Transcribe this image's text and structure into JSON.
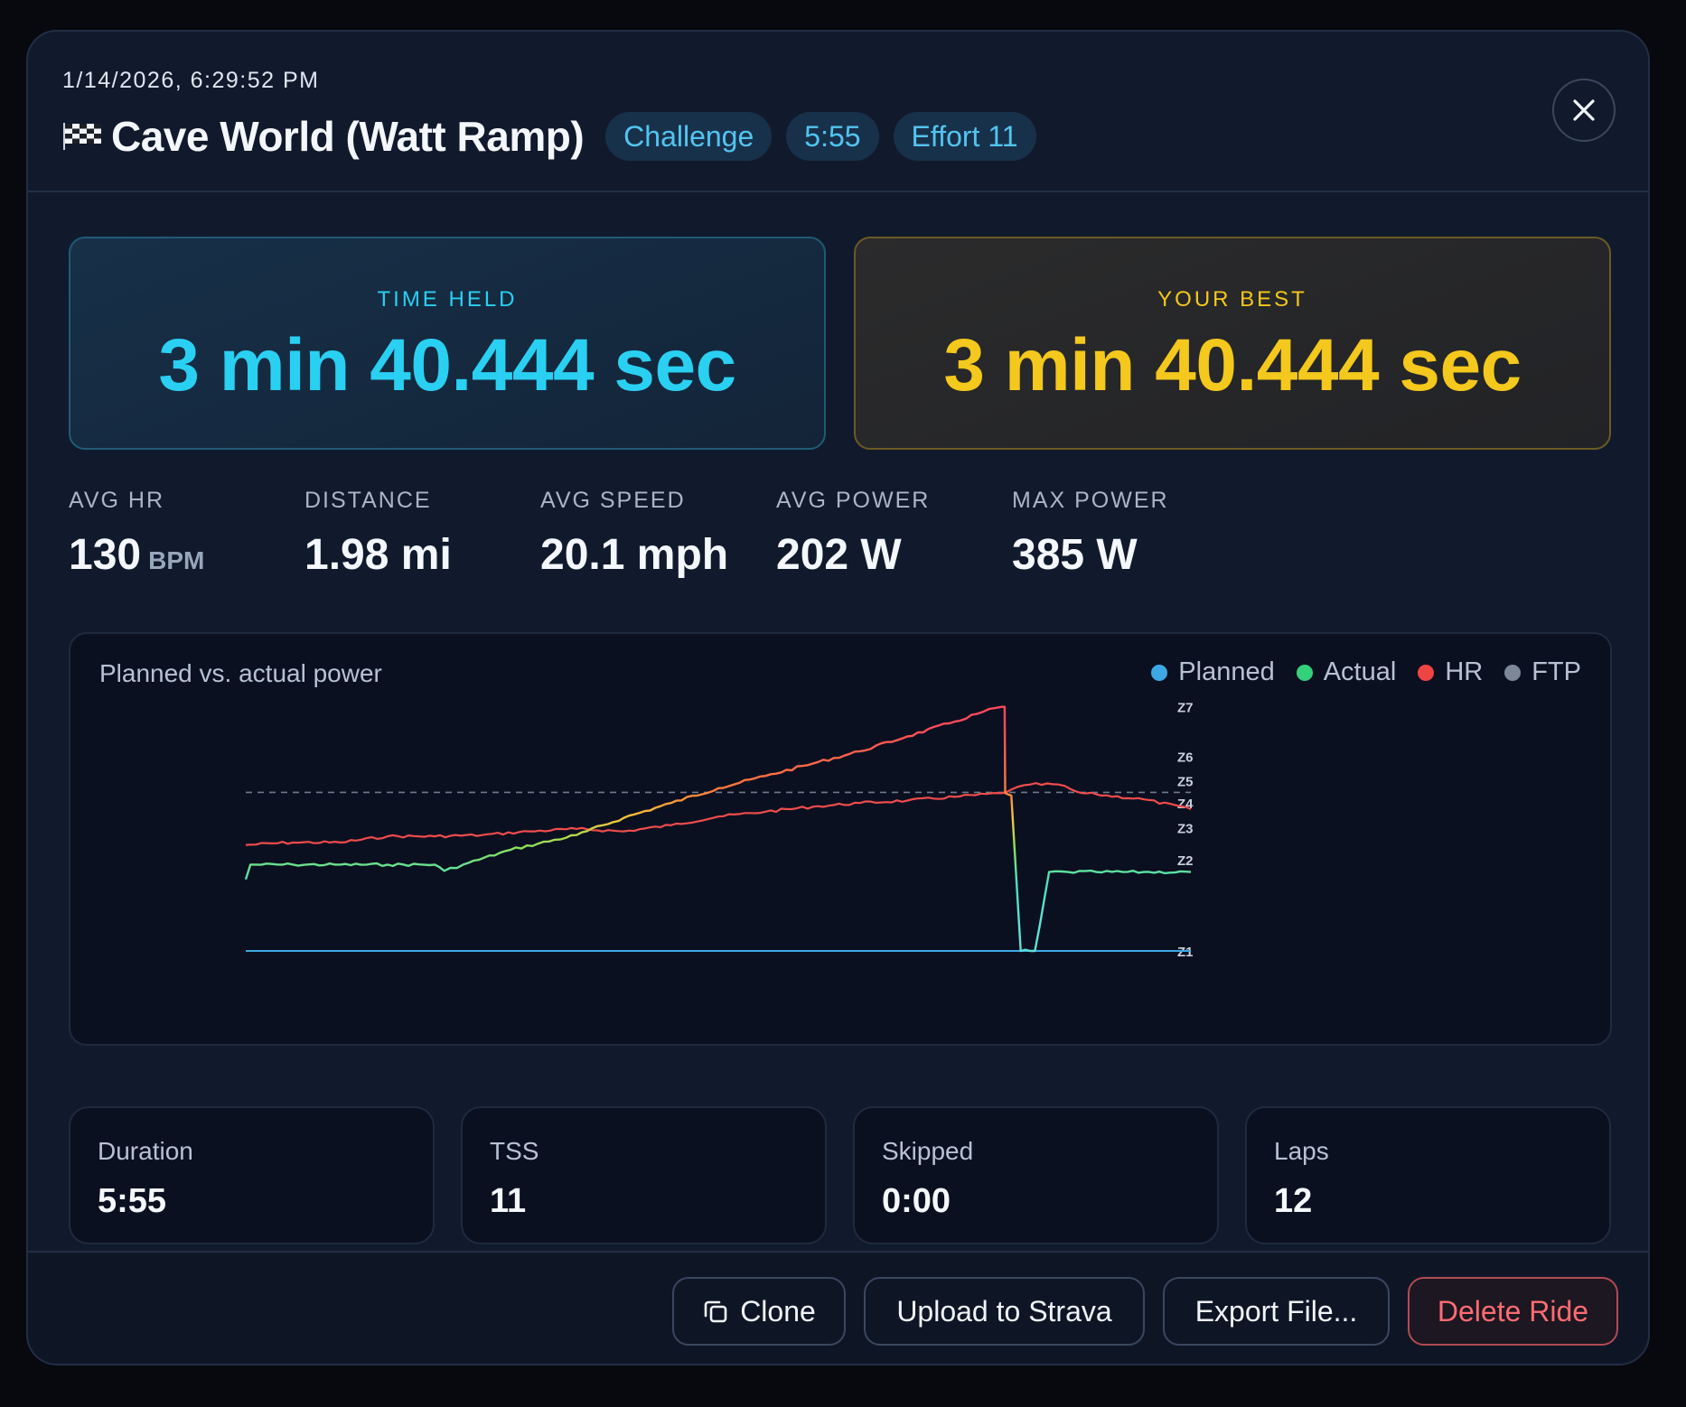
{
  "header": {
    "timestamp": "1/14/2026, 6:29:52 PM",
    "icon": "checkered-flag-icon",
    "title": "Cave World (Watt Ramp)",
    "tags": [
      "Challenge",
      "5:55",
      "Effort 11"
    ],
    "close_icon": "close-icon"
  },
  "time_held": {
    "label": "TIME HELD",
    "value": "3 min 40.444 sec"
  },
  "your_best": {
    "label": "YOUR BEST",
    "value": "3 min 40.444 sec"
  },
  "metrics": [
    {
      "label": "AVG HR",
      "value": "130",
      "unit": "BPM"
    },
    {
      "label": "DISTANCE",
      "value": "1.98 mi",
      "unit": ""
    },
    {
      "label": "AVG SPEED",
      "value": "20.1 mph",
      "unit": ""
    },
    {
      "label": "AVG POWER",
      "value": "202 W",
      "unit": ""
    },
    {
      "label": "MAX POWER",
      "value": "385 W",
      "unit": ""
    }
  ],
  "chart_data": {
    "type": "line",
    "title": "Planned vs. actual power",
    "legend_position": "top-right",
    "legend": [
      {
        "name": "Planned",
        "color": "#3ea8e5"
      },
      {
        "name": "Actual",
        "color": "#33d17a"
      },
      {
        "name": "HR",
        "color": "#ef4444"
      },
      {
        "name": "FTP",
        "color": "#7c8798"
      }
    ],
    "y_zone_labels": [
      "Z7",
      "Z6",
      "Z5",
      "Z4",
      "Z3",
      "Z2",
      "Z1"
    ],
    "x_range": [
      0,
      1
    ],
    "y_range": [
      0,
      1
    ],
    "ftp_level": 0.643,
    "series": [
      {
        "name": "Actual",
        "x": [
          0.0,
          0.005,
          0.05,
          0.1,
          0.15,
          0.2,
          0.21,
          0.23,
          0.28,
          0.35,
          0.4,
          0.45,
          0.5,
          0.55,
          0.6,
          0.65,
          0.7,
          0.75,
          0.78,
          0.8,
          0.803,
          0.8035,
          0.81,
          0.82,
          0.83,
          0.835,
          0.84,
          0.85,
          0.87,
          0.9,
          0.95,
          1.0
        ],
        "y": [
          0.29,
          0.35,
          0.35,
          0.35,
          0.35,
          0.35,
          0.325,
          0.35,
          0.41,
          0.47,
          0.54,
          0.6,
          0.66,
          0.71,
          0.76,
          0.81,
          0.87,
          0.93,
          0.97,
          0.99,
          0.99,
          0.64,
          0.63,
          0.0,
          0.0,
          0.0,
          0.1,
          0.32,
          0.32,
          0.32,
          0.32,
          0.32
        ]
      },
      {
        "name": "HR",
        "x": [
          0.0,
          0.05,
          0.1,
          0.15,
          0.2,
          0.25,
          0.3,
          0.35,
          0.4,
          0.45,
          0.5,
          0.55,
          0.6,
          0.65,
          0.7,
          0.75,
          0.8,
          0.81,
          0.83,
          0.86,
          0.88,
          0.885,
          0.9,
          0.95,
          1.0
        ],
        "y": [
          0.43,
          0.44,
          0.44,
          0.465,
          0.465,
          0.47,
          0.485,
          0.495,
          0.485,
          0.51,
          0.545,
          0.565,
          0.585,
          0.6,
          0.61,
          0.625,
          0.64,
          0.655,
          0.675,
          0.675,
          0.645,
          0.64,
          0.635,
          0.615,
          0.575
        ]
      },
      {
        "name": "Planned",
        "x": [
          0.0,
          1.0
        ],
        "y": [
          0.0,
          0.0
        ]
      }
    ]
  },
  "summary": [
    {
      "label": "Duration",
      "value": "5:55"
    },
    {
      "label": "TSS",
      "value": "11"
    },
    {
      "label": "Skipped",
      "value": "0:00"
    },
    {
      "label": "Laps",
      "value": "12"
    }
  ],
  "footer": {
    "clone_icon": "clone-icon",
    "clone": "Clone",
    "upload": "Upload to Strava",
    "export": "Export File...",
    "delete": "Delete Ride"
  }
}
